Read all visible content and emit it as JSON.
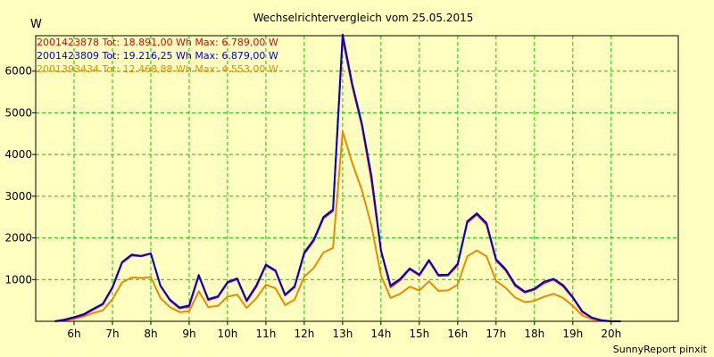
{
  "chart_data": {
    "type": "line",
    "title": "Wechselrichtervergleich vom 25.05.2015",
    "ylabel": "W",
    "credit": "SunnyReport pinxit",
    "xlim": [
      5.0,
      21.75
    ],
    "ylim": [
      0,
      6850
    ],
    "grid": true,
    "legend_position": "top-left",
    "x_ticks": [
      6,
      7,
      8,
      9,
      10,
      11,
      12,
      13,
      14,
      15,
      16,
      17,
      18,
      19,
      20
    ],
    "x_tick_labels": [
      "6h",
      "7h",
      "8h",
      "9h",
      "10h",
      "11h",
      "12h",
      "13h",
      "14h",
      "15h",
      "16h",
      "17h",
      "18h",
      "19h",
      "20h"
    ],
    "y_ticks": [
      1000,
      2000,
      3000,
      4000,
      5000,
      6000
    ],
    "y_tick_labels": [
      "1000",
      "2000",
      "3000",
      "4000",
      "5000",
      "6000"
    ],
    "x": [
      5.5,
      5.75,
      6.0,
      6.25,
      6.5,
      6.75,
      7.0,
      7.25,
      7.5,
      7.75,
      8.0,
      8.25,
      8.5,
      8.75,
      9.0,
      9.25,
      9.5,
      9.75,
      10.0,
      10.25,
      10.5,
      10.75,
      11.0,
      11.25,
      11.5,
      11.75,
      12.0,
      12.25,
      12.5,
      12.75,
      13.0,
      13.25,
      13.5,
      13.75,
      14.0,
      14.25,
      14.5,
      14.75,
      15.0,
      15.25,
      15.5,
      15.75,
      16.0,
      16.25,
      16.5,
      16.75,
      17.0,
      17.25,
      17.5,
      17.75,
      18.0,
      18.25,
      18.5,
      18.75,
      19.0,
      19.25,
      19.5,
      19.75,
      20.0,
      20.25
    ],
    "series": [
      {
        "name": "2001423878 Tot: 18.891,00 Wh Max: 6.789,00 W",
        "color": "#ee0000",
        "values": [
          0,
          30,
          80,
          150,
          280,
          400,
          800,
          1400,
          1580,
          1560,
          1620,
          850,
          500,
          310,
          350,
          1090,
          510,
          580,
          920,
          1010,
          480,
          830,
          1340,
          1200,
          620,
          820,
          1620,
          1930,
          2470,
          2650,
          6789,
          5650,
          4700,
          3400,
          1680,
          820,
          990,
          1250,
          1100,
          1450,
          1090,
          1100,
          1350,
          2370,
          2560,
          2320,
          1460,
          1220,
          850,
          690,
          760,
          920,
          1000,
          840,
          560,
          220,
          80,
          20,
          0,
          0
        ]
      },
      {
        "name": "2001423809 Tot: 19.216,25 Wh Max: 6.879,00 W",
        "color": "#0000dd",
        "values": [
          0,
          40,
          100,
          170,
          300,
          420,
          820,
          1420,
          1600,
          1570,
          1630,
          860,
          520,
          330,
          380,
          1110,
          530,
          600,
          940,
          1030,
          500,
          860,
          1360,
          1220,
          640,
          840,
          1650,
          1960,
          2500,
          2680,
          6879,
          5700,
          4750,
          3500,
          1700,
          860,
          1020,
          1270,
          1120,
          1470,
          1110,
          1120,
          1380,
          2400,
          2590,
          2360,
          1490,
          1250,
          880,
          710,
          780,
          950,
          1020,
          870,
          580,
          240,
          90,
          25,
          0,
          0
        ]
      },
      {
        "name": "2001393434 Tot: 12.468,88 Wh Max: 4.553,00 W",
        "color": "#ee8800",
        "values": [
          0,
          20,
          60,
          120,
          200,
          260,
          530,
          930,
          1050,
          1040,
          1060,
          560,
          340,
          220,
          240,
          720,
          340,
          370,
          590,
          640,
          320,
          550,
          880,
          790,
          390,
          520,
          1070,
          1280,
          1650,
          1760,
          4553,
          3800,
          3150,
          2300,
          1100,
          560,
          660,
          830,
          740,
          960,
          730,
          740,
          880,
          1560,
          1700,
          1560,
          970,
          800,
          570,
          460,
          490,
          590,
          660,
          560,
          370,
          140,
          50,
          10,
          0,
          0
        ]
      }
    ]
  },
  "colors": {
    "background": "#ffffc0",
    "grid": "#00cc00",
    "axis": "#000000",
    "title": "#000000"
  }
}
